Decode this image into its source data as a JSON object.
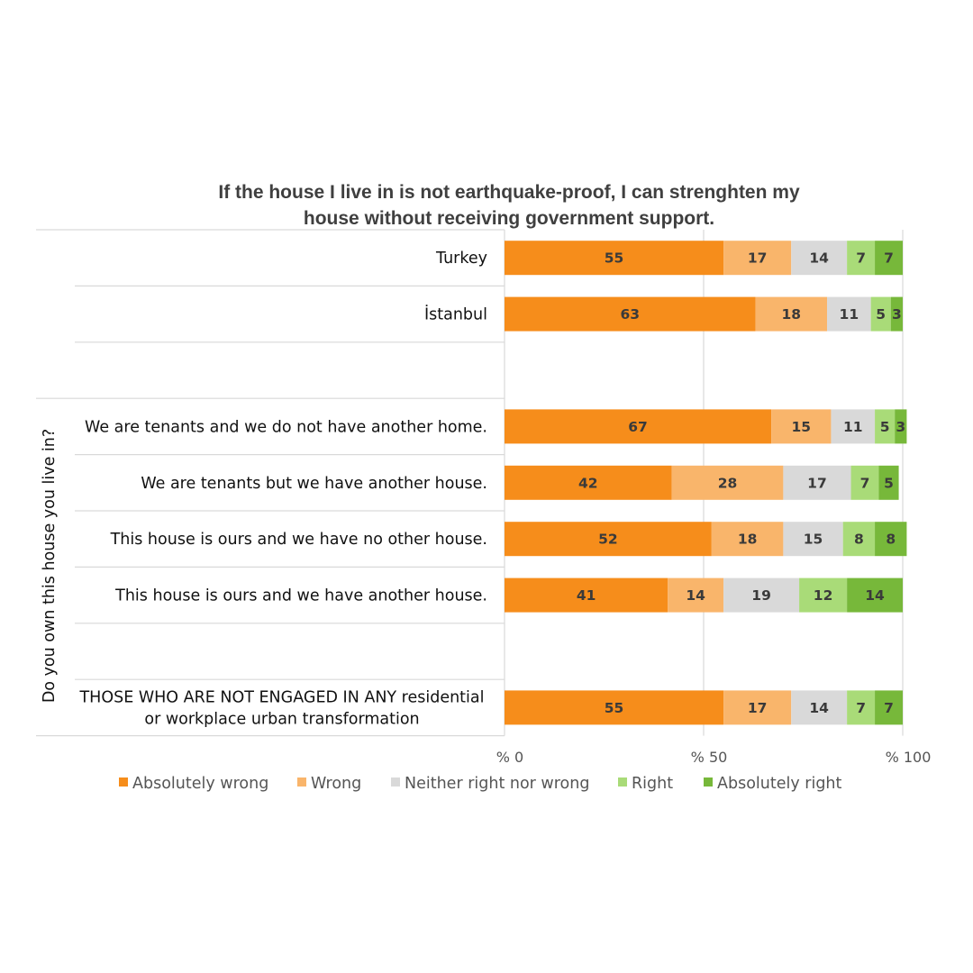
{
  "chart_data": {
    "type": "bar",
    "orientation": "horizontal",
    "stacked": true,
    "title_lines": [
      "If the house I live in is not earthquake-proof, I can strenghten my",
      "house without receiving government support."
    ],
    "y_axis_title": "Do you own this house you live in?",
    "x_tick_labels": [
      "% 0",
      "% 50",
      "% 100"
    ],
    "x_ticks": [
      0,
      50,
      100
    ],
    "xlim": [
      0,
      100
    ],
    "grid": true,
    "legend_position": "bottom",
    "series": [
      {
        "name": "Absolutely wrong",
        "color": "#f68d1b"
      },
      {
        "name": "Wrong",
        "color": "#f9b56b"
      },
      {
        "name": "Neither right nor wrong",
        "color": "#d9d9d9"
      },
      {
        "name": "Right",
        "color": "#a9db78"
      },
      {
        "name": "Absolutely right",
        "color": "#77b83a"
      }
    ],
    "rows": [
      {
        "label": "Turkey",
        "values": [
          55,
          17,
          14,
          7,
          7
        ]
      },
      {
        "label": "İstanbul",
        "values": [
          63,
          18,
          11,
          5,
          3
        ]
      },
      {
        "label": "",
        "values": []
      },
      {
        "label": "We are tenants and we do not have another home.",
        "values": [
          67,
          15,
          11,
          5,
          3
        ]
      },
      {
        "label": "We are tenants but we have another house.",
        "values": [
          42,
          28,
          17,
          7,
          5
        ]
      },
      {
        "label": "This house is ours and we have no other house.",
        "values": [
          52,
          18,
          15,
          8,
          8
        ]
      },
      {
        "label": "This house is ours and we have another house.",
        "values": [
          41,
          14,
          19,
          12,
          14
        ]
      },
      {
        "label": "",
        "values": []
      },
      {
        "label_lines": [
          "THOSE WHO ARE NOT ENGAGED IN ANY residential",
          "or workplace urban transformation"
        ],
        "values": [
          55,
          17,
          14,
          7,
          7
        ]
      }
    ]
  }
}
